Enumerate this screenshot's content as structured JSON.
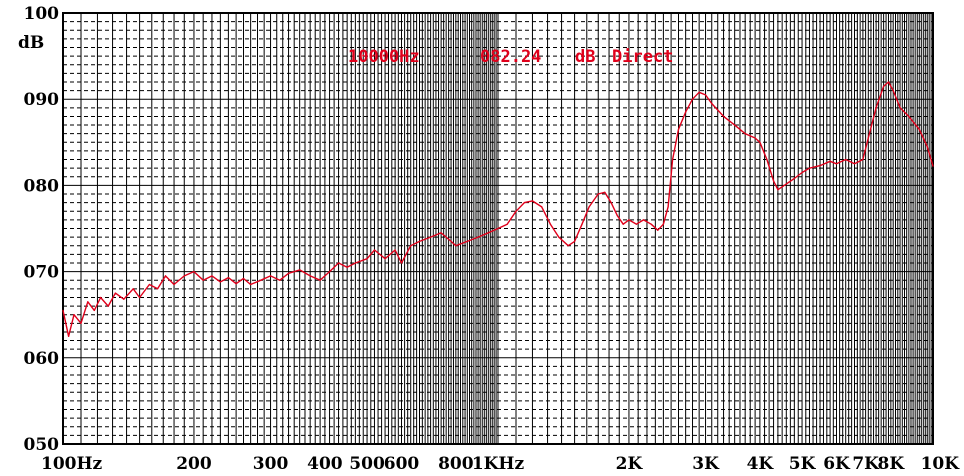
{
  "chart_data": {
    "type": "line",
    "title": "",
    "xlabel": "",
    "ylabel": "dB",
    "x_scale": "log",
    "xlim": [
      100,
      10000
    ],
    "ylim": [
      50,
      100
    ],
    "grid": true,
    "annotation": {
      "frequency": "10000Hz",
      "level": "082.24",
      "unit": "dB",
      "mode": "Direct"
    },
    "y_ticks": [
      {
        "value": 100,
        "label": "100"
      },
      {
        "value": 90,
        "label": "090"
      },
      {
        "value": 80,
        "label": "080"
      },
      {
        "value": 70,
        "label": "070"
      },
      {
        "value": 60,
        "label": "060"
      },
      {
        "value": 50,
        "label": "050"
      }
    ],
    "x_ticks": [
      {
        "value": 100,
        "label": "100Hz"
      },
      {
        "value": 200,
        "label": "200"
      },
      {
        "value": 300,
        "label": "300"
      },
      {
        "value": 400,
        "label": "400"
      },
      {
        "value": 500,
        "label": "500"
      },
      {
        "value": 600,
        "label": "600"
      },
      {
        "value": 800,
        "label": "800"
      },
      {
        "value": 1000,
        "label": "1KHz"
      },
      {
        "value": 2000,
        "label": "2K"
      },
      {
        "value": 3000,
        "label": "3K"
      },
      {
        "value": 4000,
        "label": "4K"
      },
      {
        "value": 5000,
        "label": "5K"
      },
      {
        "value": 6000,
        "label": "6K"
      },
      {
        "value": 7000,
        "label": "7K"
      },
      {
        "value": 8000,
        "label": "8K"
      },
      {
        "value": 10000,
        "label": "10K"
      }
    ],
    "colors": {
      "series": "#e0001b",
      "grid": "#000000",
      "annotation": "#e0001b"
    },
    "series": [
      {
        "values": [
          [
            100,
            65.5
          ],
          [
            103,
            62.5
          ],
          [
            106,
            65.0
          ],
          [
            110,
            64.0
          ],
          [
            114,
            66.5
          ],
          [
            118,
            65.5
          ],
          [
            122,
            67.0
          ],
          [
            127,
            66.0
          ],
          [
            132,
            67.5
          ],
          [
            138,
            66.8
          ],
          [
            145,
            68.0
          ],
          [
            150,
            67.0
          ],
          [
            158,
            68.5
          ],
          [
            165,
            68.0
          ],
          [
            172,
            69.5
          ],
          [
            180,
            68.5
          ],
          [
            190,
            69.5
          ],
          [
            200,
            70.0
          ],
          [
            210,
            69.0
          ],
          [
            220,
            69.5
          ],
          [
            230,
            68.8
          ],
          [
            240,
            69.3
          ],
          [
            250,
            68.6
          ],
          [
            260,
            69.2
          ],
          [
            270,
            68.5
          ],
          [
            285,
            69.0
          ],
          [
            300,
            69.5
          ],
          [
            315,
            69.0
          ],
          [
            330,
            69.8
          ],
          [
            350,
            70.2
          ],
          [
            370,
            69.5
          ],
          [
            390,
            69.0
          ],
          [
            410,
            70.0
          ],
          [
            430,
            71.0
          ],
          [
            450,
            70.5
          ],
          [
            470,
            71.0
          ],
          [
            500,
            71.5
          ],
          [
            520,
            72.5
          ],
          [
            550,
            71.5
          ],
          [
            580,
            72.5
          ],
          [
            600,
            71.0
          ],
          [
            630,
            73.0
          ],
          [
            660,
            73.5
          ],
          [
            700,
            74.0
          ],
          [
            740,
            74.5
          ],
          [
            780,
            73.5
          ],
          [
            800,
            73.0
          ],
          [
            850,
            73.5
          ],
          [
            900,
            74.0
          ],
          [
            950,
            74.5
          ],
          [
            1000,
            75.0
          ],
          [
            1050,
            75.5
          ],
          [
            1100,
            77.0
          ],
          [
            1150,
            78.0
          ],
          [
            1200,
            78.2
          ],
          [
            1260,
            77.5
          ],
          [
            1320,
            75.5
          ],
          [
            1380,
            74.0
          ],
          [
            1450,
            73.0
          ],
          [
            1500,
            73.5
          ],
          [
            1560,
            75.5
          ],
          [
            1620,
            77.5
          ],
          [
            1700,
            79.0
          ],
          [
            1760,
            79.2
          ],
          [
            1820,
            78.0
          ],
          [
            1880,
            76.5
          ],
          [
            1940,
            75.5
          ],
          [
            2000,
            76.0
          ],
          [
            2080,
            75.5
          ],
          [
            2160,
            76.0
          ],
          [
            2250,
            75.5
          ],
          [
            2330,
            74.8
          ],
          [
            2400,
            75.5
          ],
          [
            2460,
            77.5
          ],
          [
            2520,
            83.0
          ],
          [
            2600,
            86.5
          ],
          [
            2700,
            88.5
          ],
          [
            2800,
            90.0
          ],
          [
            2900,
            90.8
          ],
          [
            3000,
            90.5
          ],
          [
            3100,
            89.5
          ],
          [
            3300,
            88.0
          ],
          [
            3500,
            87.0
          ],
          [
            3700,
            86.0
          ],
          [
            3900,
            85.5
          ],
          [
            4000,
            85.0
          ],
          [
            4150,
            83.0
          ],
          [
            4300,
            80.5
          ],
          [
            4400,
            79.5
          ],
          [
            4550,
            80.0
          ],
          [
            4800,
            80.8
          ],
          [
            5000,
            81.5
          ],
          [
            5200,
            82.0
          ],
          [
            5500,
            82.3
          ],
          [
            5800,
            82.8
          ],
          [
            6000,
            82.5
          ],
          [
            6300,
            83.0
          ],
          [
            6600,
            82.5
          ],
          [
            6900,
            83.0
          ],
          [
            7100,
            85.5
          ],
          [
            7400,
            89.0
          ],
          [
            7700,
            91.5
          ],
          [
            7900,
            92.0
          ],
          [
            8100,
            91.0
          ],
          [
            8400,
            89.0
          ],
          [
            8800,
            88.0
          ],
          [
            9300,
            86.5
          ],
          [
            9700,
            84.5
          ],
          [
            10000,
            82.24
          ]
        ]
      }
    ]
  }
}
